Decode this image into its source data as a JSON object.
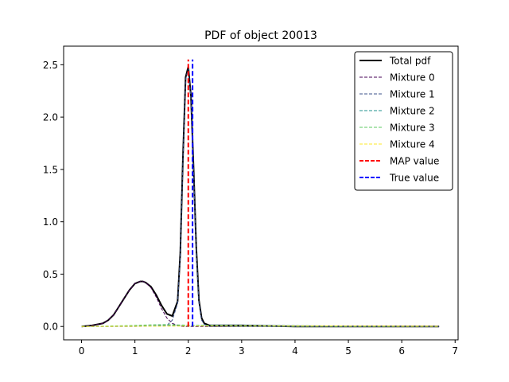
{
  "chart_data": {
    "type": "line",
    "title": "PDF of object 20013",
    "xlabel": "",
    "ylabel": "",
    "xlim": [
      -0.336,
      7.056
    ],
    "ylim": [
      -0.1275,
      2.6775
    ],
    "xticks": [
      0,
      1,
      2,
      3,
      4,
      5,
      6,
      7
    ],
    "xtick_labels": [
      "0",
      "1",
      "2",
      "3",
      "4",
      "5",
      "6",
      "7"
    ],
    "yticks": [
      0.0,
      0.5,
      1.0,
      1.5,
      2.0,
      2.5
    ],
    "ytick_labels": [
      "0.0",
      "0.5",
      "1.0",
      "1.5",
      "2.0",
      "2.5"
    ],
    "grid": false,
    "legend_placement": "top-right",
    "series": [
      {
        "name": "Total pdf",
        "color": "#000000",
        "style": "solid",
        "x": [
          0,
          0.2,
          0.4,
          0.5,
          0.6,
          0.7,
          0.8,
          0.9,
          1.0,
          1.1,
          1.15,
          1.2,
          1.3,
          1.4,
          1.5,
          1.6,
          1.7,
          1.8,
          1.85,
          1.9,
          1.95,
          2.0,
          2.05,
          2.1,
          2.15,
          2.2,
          2.25,
          2.3,
          2.4,
          2.6,
          3.0,
          4.0,
          5.0,
          6.0,
          6.7
        ],
        "y": [
          0.0,
          0.01,
          0.03,
          0.06,
          0.11,
          0.19,
          0.27,
          0.35,
          0.41,
          0.43,
          0.43,
          0.42,
          0.38,
          0.3,
          0.2,
          0.12,
          0.1,
          0.24,
          0.7,
          1.62,
          2.38,
          2.48,
          2.2,
          1.5,
          0.75,
          0.25,
          0.08,
          0.03,
          0.01,
          0.01,
          0.01,
          0.0,
          0.0,
          0.0,
          0.0
        ]
      },
      {
        "name": "Mixture 0",
        "color": "#440154",
        "style": "dashed",
        "x": [
          0,
          0.2,
          0.4,
          0.5,
          0.6,
          0.7,
          0.8,
          0.9,
          1.0,
          1.1,
          1.15,
          1.2,
          1.3,
          1.4,
          1.5,
          1.6,
          1.7,
          1.8,
          1.9,
          2.0,
          2.2,
          2.5,
          3.0,
          4.0,
          5.0,
          6.0,
          6.7
        ],
        "y": [
          0.0,
          0.01,
          0.03,
          0.06,
          0.11,
          0.19,
          0.27,
          0.35,
          0.41,
          0.43,
          0.43,
          0.42,
          0.37,
          0.28,
          0.17,
          0.08,
          0.03,
          0.01,
          0.0,
          0.0,
          0.0,
          0.0,
          0.0,
          0.0,
          0.0,
          0.0,
          0.0
        ]
      },
      {
        "name": "Mixture 1",
        "color": "#3b528b",
        "style": "dashed",
        "x": [
          0,
          1.0,
          1.6,
          1.7,
          1.8,
          1.85,
          1.9,
          1.95,
          2.0,
          2.05,
          2.1,
          2.15,
          2.2,
          2.25,
          2.3,
          2.4,
          2.6,
          3.0,
          4.0,
          5.0,
          6.0,
          6.7
        ],
        "y": [
          0.0,
          0.0,
          0.01,
          0.06,
          0.22,
          0.68,
          1.6,
          2.36,
          2.46,
          2.18,
          1.48,
          0.73,
          0.23,
          0.06,
          0.02,
          0.0,
          0.0,
          0.0,
          0.0,
          0.0,
          0.0,
          0.0
        ]
      },
      {
        "name": "Mixture 2",
        "color": "#21918c",
        "style": "dashed",
        "x": [
          0,
          0.5,
          1.0,
          1.5,
          2.0,
          2.5,
          3.0,
          3.5,
          4.0,
          5.0,
          6.0,
          6.7
        ],
        "y": [
          0.0,
          0.0,
          0.005,
          0.008,
          0.01,
          0.012,
          0.012,
          0.01,
          0.008,
          0.004,
          0.002,
          0.001
        ]
      },
      {
        "name": "Mixture 3",
        "color": "#5ec962",
        "style": "dashed",
        "x": [
          0,
          0.5,
          1.0,
          1.3,
          1.6,
          2.0,
          2.5,
          3.0,
          4.0,
          5.0,
          6.0,
          6.7
        ],
        "y": [
          0.0,
          0.004,
          0.01,
          0.016,
          0.018,
          0.012,
          0.006,
          0.003,
          0.001,
          0.0,
          0.0,
          0.0
        ]
      },
      {
        "name": "Mixture 4",
        "color": "#fde725",
        "style": "dashed",
        "x": [
          0,
          1.0,
          2.0,
          3.0,
          4.0,
          5.0,
          6.0,
          6.7
        ],
        "y": [
          0.0,
          0.002,
          0.004,
          0.005,
          0.005,
          0.004,
          0.003,
          0.002
        ]
      }
    ],
    "markers": [
      {
        "name": "MAP value",
        "color": "#ff0000",
        "style": "dashed",
        "x": 2.0,
        "y_range": [
          0,
          2.55
        ]
      },
      {
        "name": "True value",
        "color": "#0000ff",
        "style": "dashed",
        "x": 2.08,
        "y_range": [
          0,
          2.55
        ]
      }
    ]
  }
}
